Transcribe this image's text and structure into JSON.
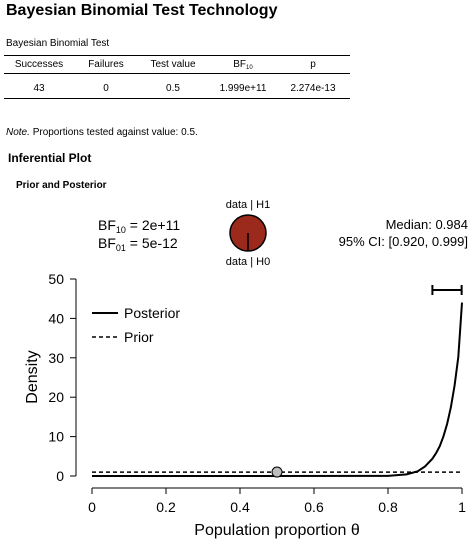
{
  "page": {
    "title": "Bayesian Binomial Test Technology"
  },
  "table": {
    "title": "Bayesian Binomial Test",
    "headers": {
      "successes": "Successes",
      "failures": "Failures",
      "test_value": "Test value",
      "bf_main": "BF",
      "bf_sub": "10",
      "p": "p"
    },
    "row": {
      "successes": "43",
      "failures": "0",
      "test_value": "0.5",
      "bf": "1.999e+11",
      "p": "2.274e-13"
    },
    "note_label": "Note.",
    "note_text": "Proportions tested against value: 0.5."
  },
  "plot": {
    "section_title": "Inferential Plot",
    "subsection_title": "Prior and Posterior",
    "bf10": {
      "main": "BF",
      "sub": "10",
      "value": " = 2e+11"
    },
    "bf01": {
      "main": "BF",
      "sub": "01",
      "value": " = 5e-12"
    },
    "pie": {
      "top_label": "data | H1",
      "bottom_label": "data | H0",
      "h1_share": 1.0,
      "color": "#9b2a1d"
    },
    "median_text": "Median: 0.984",
    "ci_text": "95% CI: [0.920, 0.999]",
    "legend": {
      "posterior": "Posterior",
      "prior": "Prior"
    },
    "colors": {
      "dot": "#bdbdbd"
    }
  },
  "chart_data": {
    "type": "line",
    "xlabel": "Population proportion θ",
    "ylabel": "Density",
    "xlim": [
      0,
      1
    ],
    "ylim": [
      0,
      50
    ],
    "xticks": [
      "0",
      "0.2",
      "0.4",
      "0.6",
      "0.8",
      "1"
    ],
    "yticks": [
      "0",
      "10",
      "20",
      "30",
      "40",
      "50"
    ],
    "series": [
      {
        "name": "Posterior",
        "style": "solid",
        "x": [
          0,
          0.8,
          0.85,
          0.88,
          0.9,
          0.92,
          0.93,
          0.94,
          0.95,
          0.96,
          0.97,
          0.98,
          0.99,
          1.0
        ],
        "y": [
          0,
          0.03,
          0.4,
          1.2,
          2.4,
          4.4,
          5.8,
          7.6,
          10.1,
          13.3,
          17.5,
          23.0,
          30.2,
          44.0
        ]
      },
      {
        "name": "Prior",
        "style": "dashed",
        "x": [
          0,
          1
        ],
        "y": [
          1,
          1
        ]
      }
    ],
    "credible_interval": [
      0.92,
      0.999
    ],
    "test_point": {
      "x": 0.5,
      "y": 1
    },
    "grid": false,
    "legend_position": "top-left"
  }
}
